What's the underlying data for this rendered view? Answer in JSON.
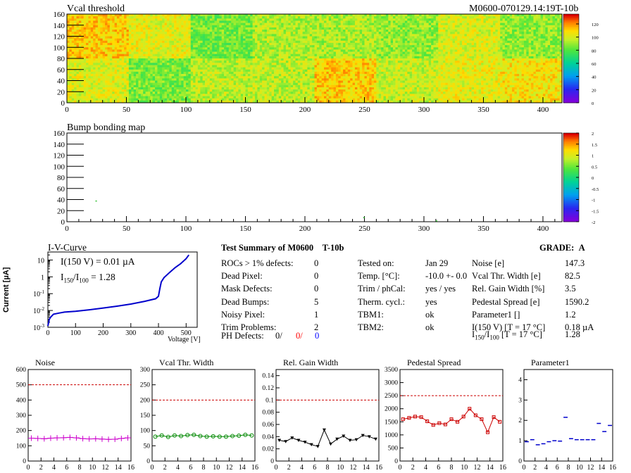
{
  "header": {
    "left_title": "Vcal threshold",
    "right_title": "M0600-070129.14:19T-10b"
  },
  "chart_data": [
    {
      "id": "vcal",
      "type": "heatmap",
      "title": "Vcal threshold",
      "xlim": [
        0,
        416
      ],
      "ylim": [
        0,
        160
      ],
      "x_ticks": [
        "0",
        "50",
        "100",
        "150",
        "200",
        "250",
        "300",
        "350",
        "400"
      ],
      "y_ticks": [
        "0",
        "20",
        "40",
        "60",
        "80",
        "100",
        "120",
        "140",
        "160"
      ],
      "colorbar_ticks": [
        "0",
        "20",
        "40",
        "60",
        "80",
        "100",
        "120"
      ],
      "zlim": [
        0,
        135
      ],
      "roc_blocks": [
        {
          "row": "top",
          "means": [
            112,
            103,
            85,
            94,
            93,
            90,
            101,
            90,
            101
          ]
        },
        {
          "row": "bottom",
          "means": [
            102,
            86,
            96,
            96,
            112,
            98,
            103,
            107,
            100
          ]
        }
      ]
    },
    {
      "id": "bump",
      "type": "heatmap",
      "title": "Bump bonding map",
      "xlim": [
        0,
        416
      ],
      "ylim": [
        0,
        160
      ],
      "x_ticks": [
        "0",
        "50",
        "100",
        "150",
        "200",
        "250",
        "300",
        "350",
        "400"
      ],
      "y_ticks": [
        "0",
        "20",
        "40",
        "60",
        "80",
        "100",
        "120",
        "140",
        "160"
      ],
      "colorbar_ticks": [
        "-2",
        "-1.5",
        "-1",
        "-0.5",
        "0",
        "0.5",
        "1",
        "1.5",
        "2"
      ],
      "zlim": [
        -2,
        2
      ],
      "points": [
        {
          "x": 24,
          "y": 37
        },
        {
          "x": 249,
          "y": 7
        },
        {
          "x": 310,
          "y": 1
        }
      ]
    },
    {
      "id": "iv",
      "type": "line",
      "title": "I-V-Curve",
      "xlabel": "Voltage [V]",
      "ylabel": "Current [µA]",
      "log_y": true,
      "xlim": [
        0,
        540
      ],
      "ylim": [
        0.001,
        30
      ],
      "x_ticks": [
        "0",
        "100",
        "200",
        "300",
        "400",
        "500"
      ],
      "y_tick_values": [
        0.001,
        0.01,
        0.1,
        1,
        10
      ],
      "x": [
        0,
        5,
        10,
        20,
        40,
        60,
        100,
        150,
        200,
        250,
        300,
        350,
        390,
        400,
        405,
        410,
        420,
        440,
        460,
        480,
        500,
        510
      ],
      "y": [
        0.0012,
        0.003,
        0.004,
        0.006,
        0.007,
        0.008,
        0.009,
        0.011,
        0.014,
        0.018,
        0.024,
        0.035,
        0.05,
        0.07,
        0.2,
        0.5,
        0.9,
        1.8,
        3.5,
        6,
        12,
        20
      ],
      "annotation1": "I(150 V) = 0.01 µA",
      "annotation2_prefix": "I",
      "annotation2_sub1": "150",
      "annotation2_mid": "/I",
      "annotation2_sub2": "100",
      "annotation2_suffix": " = 1.28"
    },
    {
      "id": "noise",
      "type": "scatter",
      "title": "Noise",
      "color": "#cc00cc",
      "xlim": [
        0,
        16
      ],
      "ylim": [
        0,
        600
      ],
      "x_ticks": [
        "0",
        "2",
        "4",
        "6",
        "8",
        "10",
        "12",
        "14",
        "16"
      ],
      "y_ticks": [
        "0",
        "100",
        "200",
        "300",
        "400",
        "500",
        "600"
      ],
      "threshold": 500,
      "values": [
        150,
        148,
        146,
        150,
        152,
        153,
        155,
        152,
        147,
        145,
        146,
        144,
        142,
        143,
        148,
        152
      ]
    },
    {
      "id": "vcalwidth",
      "type": "scatter",
      "title": "Vcal Thr. Width",
      "color": "#008800",
      "xlim": [
        0,
        16
      ],
      "ylim": [
        0,
        300
      ],
      "x_ticks": [
        "0",
        "2",
        "4",
        "6",
        "8",
        "10",
        "12",
        "14",
        "16"
      ],
      "y_ticks": [
        "0",
        "50",
        "100",
        "150",
        "200",
        "250",
        "300"
      ],
      "threshold": 200,
      "values": [
        80,
        84,
        79,
        84,
        82,
        85,
        86,
        82,
        80,
        81,
        80,
        80,
        82,
        83,
        86,
        84
      ]
    },
    {
      "id": "gain",
      "type": "line",
      "title": "Rel. Gain Width",
      "color": "#000000",
      "xlim": [
        0,
        16
      ],
      "ylim": [
        0,
        0.15
      ],
      "x_ticks": [
        "0",
        "2",
        "4",
        "6",
        "8",
        "10",
        "12",
        "14",
        "16"
      ],
      "y_ticks": [
        "0",
        "0.02",
        "0.04",
        "0.06",
        "0.08",
        "0.1",
        "0.12",
        "0.14"
      ],
      "threshold": 0.1,
      "values": [
        0.034,
        0.032,
        0.038,
        0.034,
        0.031,
        0.027,
        0.024,
        0.051,
        0.028,
        0.036,
        0.041,
        0.034,
        0.035,
        0.042,
        0.04,
        0.036
      ]
    },
    {
      "id": "pedestal",
      "type": "line",
      "title": "Pedestal Spread",
      "color": "#cc0000",
      "xlim": [
        0,
        16
      ],
      "ylim": [
        0,
        3500
      ],
      "x_ticks": [
        "0",
        "2",
        "4",
        "6",
        "8",
        "10",
        "12",
        "14",
        "16"
      ],
      "y_ticks": [
        "0",
        "500",
        "1000",
        "1500",
        "2000",
        "2500",
        "3000",
        "3500"
      ],
      "threshold": 2500,
      "values": [
        1600,
        1650,
        1700,
        1680,
        1520,
        1380,
        1450,
        1400,
        1600,
        1500,
        1700,
        2000,
        1750,
        1600,
        1100,
        1680,
        1500
      ]
    },
    {
      "id": "param1",
      "type": "scatter",
      "title": "Parameter1",
      "color": "#0000cc",
      "xlim": [
        0,
        16
      ],
      "ylim": [
        0,
        4.5
      ],
      "x_ticks": [
        "0",
        "2",
        "4",
        "6",
        "8",
        "10",
        "12",
        "14",
        "16"
      ],
      "y_ticks": [
        "0",
        "1",
        "2",
        "3",
        "4"
      ],
      "values": [
        0.95,
        1.05,
        0.8,
        0.85,
        0.95,
        1.0,
        0.98,
        2.15,
        1.1,
        1.05,
        1.05,
        1.05,
        1.05,
        1.85,
        1.45,
        1.75
      ]
    }
  ],
  "summary": {
    "title": "Test Summary of M0600",
    "test": "T-10b",
    "grade_label": "GRADE:",
    "grade": "A",
    "left": [
      {
        "label": "ROCs > 1% defects:",
        "value": "0"
      },
      {
        "label": "Dead Pixel:",
        "value": "0"
      },
      {
        "label": "Mask Defects:",
        "value": "0"
      },
      {
        "label": "Dead Bumps:",
        "value": "5"
      },
      {
        "label": "Noisy Pixel:",
        "value": "1"
      },
      {
        "label": "Trim Problems:",
        "value": "2"
      }
    ],
    "ph_label": "PH Defects:",
    "ph_values": [
      "0/",
      "0/",
      "0"
    ],
    "ph_colors": [
      "#000000",
      "#ff0000",
      "#0000ff"
    ],
    "middle": [
      {
        "label": "Tested on:",
        "value": "Jan 29"
      },
      {
        "label": "Temp. [°C]:",
        "value": "-10.0 +- 0.0"
      },
      {
        "label": "Trim / phCal:",
        "value": "yes / yes"
      },
      {
        "label": "Therm. cycl.:",
        "value": "yes"
      },
      {
        "label": "TBM1:",
        "value": "ok"
      },
      {
        "label": "TBM2:",
        "value": "ok"
      }
    ],
    "right": [
      {
        "label": "Noise [e]",
        "value": "147.3"
      },
      {
        "label": "Vcal Thr. Width [e]",
        "value": "82.5"
      },
      {
        "label": "Rel. Gain Width [%]",
        "value": "3.5"
      },
      {
        "label": "Pedestal Spread [e]",
        "value": "1590.2"
      },
      {
        "label": "Parameter1 []",
        "value": "1.2"
      },
      {
        "label": "I(150 V) [T = 17 °C]",
        "value": "0.18 µA"
      }
    ],
    "ratio_prefix": "I",
    "ratio_sub1": "150",
    "ratio_mid": "/I",
    "ratio_sub2": "100",
    "ratio_suffix": "  [T = 17 °C]",
    "ratio_value": "1.28"
  }
}
